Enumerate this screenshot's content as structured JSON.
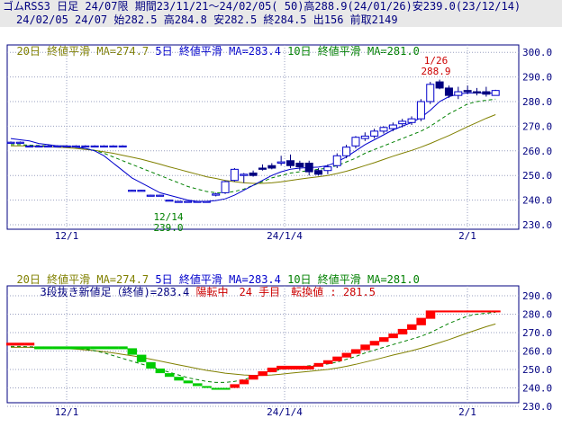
{
  "header": {
    "line1": "ゴムRSS3 日足 24/07限 期間23/11/21～24/02/05( 50)高288.9(24/01/26)安239.0(23/12/14)",
    "line2": "24/02/05 24/07 始282.5 高284.8 安282.5 終284.5 出156 前取2149"
  },
  "top_legend": {
    "ma20": "20日 終値平滑 MA=274.7",
    "ma5": "5日 終値平滑 MA=283.4",
    "ma10": "10日 終値平滑 MA=281.0"
  },
  "bottom_legend": {
    "ma20": "20日 終値平滑 MA=274.7",
    "ma5": "5日 終値平滑 MA=283.4",
    "ma10": "10日 終値平滑 MA=281.0",
    "line2_black": "3段抜き新値足（終値)=283.4",
    "line2_red": "陽転中　24 手目　転換値 : 281.5"
  },
  "annotations": {
    "high_date": "1/26",
    "high_value": "288.9",
    "low_date": "12/14",
    "low_value": "239.0"
  },
  "colors": {
    "up_candle": "#0000cc",
    "down_candle": "#000080",
    "ma5": "#0000cc",
    "ma10": "#008000",
    "ma20": "#808000",
    "new_price_up": "#ff0000",
    "new_price_down": "#00cc00",
    "annotation_high": "#cc0000",
    "annotation_low": "#008000",
    "axis_text": "#000080"
  },
  "chart_data": [
    {
      "type": "candlestick",
      "title": "ゴムRSS3 日足 24/07限",
      "x_ticks": [
        "12/1",
        "24/1/4",
        "2/1"
      ],
      "y_ticks": [
        "300.0",
        "290.0",
        "280.0",
        "270.0",
        "260.0",
        "250.0",
        "240.0",
        "230.0"
      ],
      "ylim": [
        230,
        300
      ],
      "grid": true,
      "candles": [
        {
          "o": 263.5,
          "h": 263.8,
          "l": 263.2,
          "c": 263.5
        },
        {
          "o": 263.5,
          "h": 263.8,
          "l": 263.2,
          "c": 263.5
        },
        {
          "o": 262.0,
          "h": 262.3,
          "l": 261.7,
          "c": 262.0
        },
        {
          "o": 262.0,
          "h": 262.3,
          "l": 261.7,
          "c": 262.0
        },
        {
          "o": 262.0,
          "h": 262.3,
          "l": 261.7,
          "c": 262.0
        },
        {
          "o": 262.0,
          "h": 262.3,
          "l": 261.7,
          "c": 262.0
        },
        {
          "o": 262.0,
          "h": 262.3,
          "l": 261.7,
          "c": 262.0
        },
        {
          "o": 262.0,
          "h": 262.3,
          "l": 261.7,
          "c": 262.0
        },
        {
          "o": 262.0,
          "h": 262.3,
          "l": 261.7,
          "c": 262.0
        },
        {
          "o": 262.0,
          "h": 262.3,
          "l": 261.7,
          "c": 262.0
        },
        {
          "o": 262.0,
          "h": 262.3,
          "l": 261.7,
          "c": 262.0
        },
        {
          "o": 262.0,
          "h": 262.3,
          "l": 261.7,
          "c": 262.0
        },
        {
          "o": 262.0,
          "h": 262.3,
          "l": 261.7,
          "c": 262.0
        },
        {
          "o": 244.0,
          "h": 244.2,
          "l": 243.8,
          "c": 244.0
        },
        {
          "o": 244.0,
          "h": 244.2,
          "l": 243.8,
          "c": 244.0
        },
        {
          "o": 242.0,
          "h": 242.2,
          "l": 241.8,
          "c": 242.0
        },
        {
          "o": 242.0,
          "h": 242.2,
          "l": 241.8,
          "c": 242.0
        },
        {
          "o": 240.0,
          "h": 240.2,
          "l": 239.8,
          "c": 240.0
        },
        {
          "o": 239.5,
          "h": 239.7,
          "l": 239.0,
          "c": 239.5
        },
        {
          "o": 239.5,
          "h": 239.7,
          "l": 239.3,
          "c": 239.5
        },
        {
          "o": 239.5,
          "h": 239.7,
          "l": 239.3,
          "c": 239.5
        },
        {
          "o": 239.5,
          "h": 239.7,
          "l": 239.3,
          "c": 239.5
        },
        {
          "o": 242.0,
          "h": 243.0,
          "l": 241.5,
          "c": 242.5
        },
        {
          "o": 243.0,
          "h": 248.0,
          "l": 242.5,
          "c": 247.5
        },
        {
          "o": 248.0,
          "h": 253.0,
          "l": 247.5,
          "c": 252.5
        },
        {
          "o": 250.0,
          "h": 251.0,
          "l": 247.0,
          "c": 250.5
        },
        {
          "o": 251.0,
          "h": 252.0,
          "l": 249.5,
          "c": 250.0
        },
        {
          "o": 253.0,
          "h": 254.5,
          "l": 252.0,
          "c": 252.5
        },
        {
          "o": 254.0,
          "h": 255.0,
          "l": 252.5,
          "c": 253.0
        },
        {
          "o": 255.0,
          "h": 258.0,
          "l": 254.0,
          "c": 255.5
        },
        {
          "o": 256.0,
          "h": 258.5,
          "l": 253.0,
          "c": 254.0
        },
        {
          "o": 255.0,
          "h": 256.0,
          "l": 252.0,
          "c": 253.5
        },
        {
          "o": 255.0,
          "h": 256.0,
          "l": 250.0,
          "c": 251.5
        },
        {
          "o": 252.0,
          "h": 253.0,
          "l": 250.0,
          "c": 250.5
        },
        {
          "o": 252.0,
          "h": 254.5,
          "l": 250.5,
          "c": 253.5
        },
        {
          "o": 254.0,
          "h": 259.0,
          "l": 253.0,
          "c": 258.0
        },
        {
          "o": 258.0,
          "h": 262.5,
          "l": 257.0,
          "c": 261.5
        },
        {
          "o": 262.0,
          "h": 266.0,
          "l": 261.0,
          "c": 265.5
        },
        {
          "o": 265.0,
          "h": 267.5,
          "l": 264.0,
          "c": 266.0
        },
        {
          "o": 266.0,
          "h": 269.0,
          "l": 265.0,
          "c": 268.0
        },
        {
          "o": 268.0,
          "h": 270.0,
          "l": 267.0,
          "c": 269.5
        },
        {
          "o": 269.0,
          "h": 271.5,
          "l": 268.0,
          "c": 270.5
        },
        {
          "o": 271.0,
          "h": 273.0,
          "l": 269.5,
          "c": 272.0
        },
        {
          "o": 271.5,
          "h": 274.0,
          "l": 270.5,
          "c": 273.0
        },
        {
          "o": 273.0,
          "h": 281.0,
          "l": 272.0,
          "c": 280.0
        },
        {
          "o": 280.0,
          "h": 288.0,
          "l": 279.0,
          "c": 287.0
        },
        {
          "o": 288.0,
          "h": 288.9,
          "l": 285.0,
          "c": 285.5
        },
        {
          "o": 285.5,
          "h": 286.5,
          "l": 281.5,
          "c": 282.5
        },
        {
          "o": 282.5,
          "h": 286.0,
          "l": 281.0,
          "c": 284.0
        },
        {
          "o": 284.5,
          "h": 286.5,
          "l": 283.0,
          "c": 284.0
        },
        {
          "o": 284.0,
          "h": 285.5,
          "l": 282.5,
          "c": 283.5
        },
        {
          "o": 284.0,
          "h": 286.0,
          "l": 282.0,
          "c": 283.0
        },
        {
          "o": 282.5,
          "h": 284.8,
          "l": 282.5,
          "c": 284.5
        }
      ],
      "ma5": [
        265,
        264.5,
        264,
        263,
        262.5,
        262,
        262,
        261.5,
        261,
        260,
        258,
        255,
        252,
        249,
        247,
        245,
        243,
        242,
        241,
        240,
        239.5,
        239.5,
        239.8,
        240.5,
        242,
        244,
        246,
        248,
        250,
        251.5,
        252.5,
        253,
        253.2,
        253.4,
        254,
        255.5,
        257.5,
        260,
        262.5,
        264.5,
        266.5,
        268.5,
        270,
        271.5,
        273.5,
        276.5,
        280,
        282,
        283,
        283.5,
        283.5,
        283.5,
        283.4
      ],
      "ma10": [
        262.5,
        262.5,
        262.3,
        262.2,
        262,
        262,
        261.8,
        261.5,
        261,
        260.2,
        259,
        257.5,
        256,
        254.5,
        253,
        251.5,
        250,
        248.5,
        247,
        245.5,
        244.5,
        243.5,
        243,
        243,
        243.5,
        244.5,
        246,
        247.5,
        249,
        250,
        251,
        251.5,
        252,
        252.5,
        253,
        254,
        255.5,
        257,
        259,
        260.5,
        262,
        263.5,
        265,
        266.5,
        268,
        270,
        272.5,
        275,
        277,
        279,
        280,
        280.5,
        281.0
      ],
      "ma20": [
        262,
        262,
        262,
        261.8,
        261.7,
        261.5,
        261.3,
        261,
        260.6,
        260.2,
        259.6,
        259,
        258.2,
        257.4,
        256.6,
        255.6,
        254.6,
        253.5,
        252.5,
        251.5,
        250.5,
        249.5,
        248.8,
        248,
        247.5,
        247,
        246.8,
        246.8,
        247,
        247.4,
        248,
        248.5,
        249,
        249.5,
        250,
        250.8,
        251.7,
        252.8,
        254,
        255.2,
        256.5,
        257.8,
        259,
        260.2,
        261.5,
        263,
        264.6,
        266.2,
        268,
        269.8,
        271.5,
        273.2,
        274.7
      ]
    },
    {
      "type": "bar",
      "title": "3段抜き新値足（終値)",
      "x_ticks": [
        "12/1",
        "24/1/4",
        "2/1"
      ],
      "y_ticks": [
        "290.0",
        "280.0",
        "270.0",
        "260.0",
        "250.0",
        "240.0",
        "230.0"
      ],
      "ylim": [
        230,
        295
      ],
      "grid": true,
      "bricks": [
        {
          "d": "up",
          "lo": 263.0,
          "hi": 264.5
        },
        {
          "d": "up",
          "lo": 263.0,
          "hi": 264.5
        },
        {
          "d": "up",
          "lo": 263.0,
          "hi": 264.5
        },
        {
          "d": "down",
          "lo": 261.0,
          "hi": 262.5
        },
        {
          "d": "down",
          "lo": 261.0,
          "hi": 262.5
        },
        {
          "d": "down",
          "lo": 261.0,
          "hi": 262.5
        },
        {
          "d": "down",
          "lo": 261.0,
          "hi": 262.5
        },
        {
          "d": "down",
          "lo": 261.0,
          "hi": 262.5
        },
        {
          "d": "down",
          "lo": 261.0,
          "hi": 262.5
        },
        {
          "d": "down",
          "lo": 261.0,
          "hi": 262.5
        },
        {
          "d": "down",
          "lo": 261.0,
          "hi": 262.5
        },
        {
          "d": "down",
          "lo": 261.0,
          "hi": 262.5
        },
        {
          "d": "down",
          "lo": 261.0,
          "hi": 262.5
        },
        {
          "d": "down",
          "lo": 258.0,
          "hi": 261.5
        },
        {
          "d": "down",
          "lo": 254.0,
          "hi": 258.0
        },
        {
          "d": "down",
          "lo": 250.5,
          "hi": 254.0
        },
        {
          "d": "down",
          "lo": 248.0,
          "hi": 250.5
        },
        {
          "d": "down",
          "lo": 246.0,
          "hi": 248.0
        },
        {
          "d": "down",
          "lo": 244.0,
          "hi": 246.0
        },
        {
          "d": "down",
          "lo": 242.5,
          "hi": 244.0
        },
        {
          "d": "down",
          "lo": 241.0,
          "hi": 242.5
        },
        {
          "d": "down",
          "lo": 240.0,
          "hi": 241.0
        },
        {
          "d": "down",
          "lo": 239.0,
          "hi": 240.0
        },
        {
          "d": "down",
          "lo": 239.0,
          "hi": 240.0
        },
        {
          "d": "up",
          "lo": 240.0,
          "hi": 242.0
        },
        {
          "d": "up",
          "lo": 242.0,
          "hi": 244.5
        },
        {
          "d": "up",
          "lo": 244.5,
          "hi": 247.0
        },
        {
          "d": "up",
          "lo": 246.5,
          "hi": 249.0
        },
        {
          "d": "up",
          "lo": 248.5,
          "hi": 251.0
        },
        {
          "d": "up",
          "lo": 250.0,
          "hi": 252.0
        },
        {
          "d": "up",
          "lo": 250.0,
          "hi": 252.0
        },
        {
          "d": "up",
          "lo": 250.0,
          "hi": 252.0
        },
        {
          "d": "up",
          "lo": 250.0,
          "hi": 252.0
        },
        {
          "d": "up",
          "lo": 251.5,
          "hi": 253.5
        },
        {
          "d": "up",
          "lo": 253.0,
          "hi": 255.0
        },
        {
          "d": "up",
          "lo": 254.5,
          "hi": 257.0
        },
        {
          "d": "up",
          "lo": 256.5,
          "hi": 259.0
        },
        {
          "d": "up",
          "lo": 258.5,
          "hi": 261.0
        },
        {
          "d": "up",
          "lo": 260.5,
          "hi": 263.5
        },
        {
          "d": "up",
          "lo": 263.0,
          "hi": 265.5
        },
        {
          "d": "up",
          "lo": 265.0,
          "hi": 267.5
        },
        {
          "d": "up",
          "lo": 267.0,
          "hi": 269.5
        },
        {
          "d": "up",
          "lo": 269.0,
          "hi": 272.0
        },
        {
          "d": "up",
          "lo": 271.5,
          "hi": 274.5
        },
        {
          "d": "up",
          "lo": 274.0,
          "hi": 278.0
        },
        {
          "d": "up",
          "lo": 277.5,
          "hi": 282.0
        },
        {
          "d": "up",
          "lo": 281.0,
          "hi": 282.0
        },
        {
          "d": "up",
          "lo": 281.0,
          "hi": 282.0
        },
        {
          "d": "up",
          "lo": 281.0,
          "hi": 282.0
        },
        {
          "d": "up",
          "lo": 281.0,
          "hi": 282.0
        },
        {
          "d": "up",
          "lo": 281.0,
          "hi": 282.0
        },
        {
          "d": "up",
          "lo": 281.0,
          "hi": 282.0
        },
        {
          "d": "up",
          "lo": 281.0,
          "hi": 282.0
        }
      ]
    }
  ]
}
